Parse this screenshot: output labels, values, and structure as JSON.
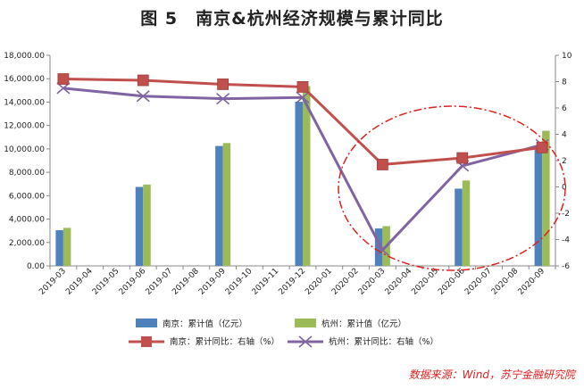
{
  "figure": {
    "title": "图 5　南京&杭州经济规模与累计同比",
    "source": "数据来源：Wind，苏宁金融研究院"
  },
  "colors": {
    "nanjing_bar": "#4f81bd",
    "hangzhou_bar": "#9bbb59",
    "nanjing_line": "#c0504d",
    "hangzhou_line": "#8064a2",
    "highlight_ellipse": "#e02020"
  },
  "chart_data": {
    "type": "bar+line",
    "categories": [
      "2019-03",
      "2019-04",
      "2019-05",
      "2019-06",
      "2019-07",
      "2019-08",
      "2019-09",
      "2019-10",
      "2019-11",
      "2019-12",
      "2020-01",
      "2020-02",
      "2020-03",
      "2020-04",
      "2020-05",
      "2020-06",
      "2020-07",
      "2020-08",
      "2020-09"
    ],
    "left_axis": {
      "ylim": [
        0,
        18000
      ],
      "ticks": [
        "0.00",
        "2,000.00",
        "4,000.00",
        "6,000.00",
        "8,000.00",
        "10,000.00",
        "12,000.00",
        "14,000.00",
        "16,000.00",
        "18,000.00"
      ]
    },
    "right_axis": {
      "ylim": [
        -6,
        10
      ],
      "ticks": [
        "-6",
        "-4",
        "-2",
        "0",
        "2",
        "4",
        "6",
        "8",
        "10"
      ]
    },
    "series": [
      {
        "name": "南京：累计值（亿元）",
        "type": "bar",
        "axis": "left",
        "values": [
          3050,
          null,
          null,
          6750,
          null,
          null,
          10250,
          null,
          null,
          14030,
          null,
          null,
          3200,
          null,
          null,
          6600,
          null,
          null,
          10300
        ]
      },
      {
        "name": "杭州：累计值（亿元）",
        "type": "bar",
        "axis": "left",
        "values": [
          3250,
          null,
          null,
          6950,
          null,
          null,
          10500,
          null,
          null,
          15370,
          null,
          null,
          3400,
          null,
          null,
          7300,
          null,
          null,
          11550
        ]
      },
      {
        "name": "南京：累计同比：右轴（%）",
        "type": "line",
        "axis": "right",
        "marker": "square",
        "values": [
          8.2,
          null,
          null,
          8.1,
          null,
          null,
          7.8,
          null,
          null,
          7.6,
          null,
          null,
          1.7,
          null,
          null,
          2.2,
          null,
          null,
          3.0
        ]
      },
      {
        "name": "杭州：累计同比：右轴（%）",
        "type": "line",
        "axis": "right",
        "marker": "x",
        "values": [
          7.5,
          null,
          null,
          6.9,
          null,
          null,
          6.7,
          null,
          null,
          6.8,
          null,
          null,
          -4.8,
          null,
          null,
          1.6,
          null,
          null,
          3.2
        ]
      }
    ],
    "annotation": "dash-dot ellipse highlighting 2020 recovery"
  }
}
